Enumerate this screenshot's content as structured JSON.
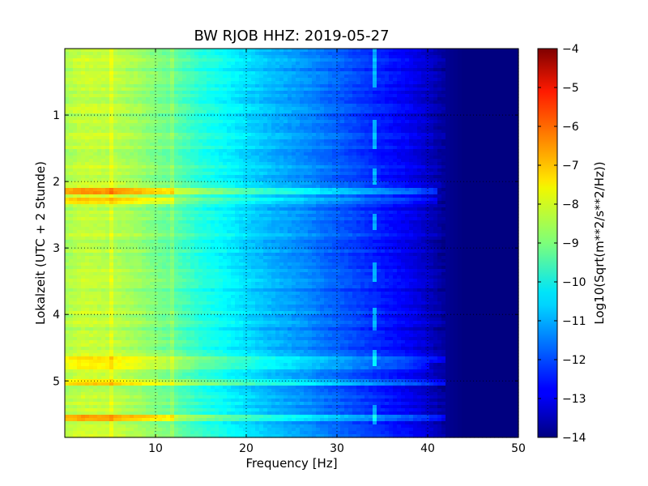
{
  "chart_data": {
    "type": "heatmap",
    "title": "BW RJOB HHZ: 2019-05-27",
    "xlabel": "Frequency [Hz]",
    "ylabel": "Lokalzeit (UTC + 2 Stunde)",
    "xlim": [
      0,
      50
    ],
    "ylim": [
      5.85,
      0
    ],
    "x_ticks": [
      10,
      20,
      30,
      40,
      50
    ],
    "x_tick_labels": [
      "10",
      "20",
      "30",
      "40",
      "50"
    ],
    "y_ticks": [
      1,
      2,
      3,
      4,
      5
    ],
    "y_tick_labels": [
      "1",
      "2",
      "3",
      "4",
      "5"
    ],
    "grid": true,
    "colorbar": {
      "label": "Log10(Sqrt(m**2/s**2/Hz))",
      "range": [
        -14,
        -4
      ],
      "ticks": [
        -4,
        -5,
        -6,
        -7,
        -8,
        -9,
        -10,
        -11,
        -12,
        -13,
        -14
      ],
      "tick_labels": [
        "−4",
        "−5",
        "−6",
        "−7",
        "−8",
        "−9",
        "−10",
        "−11",
        "−12",
        "−13",
        "−14"
      ],
      "colormap": "jet"
    },
    "frequency_profile_log10": {
      "frequency_hz": [
        0,
        2,
        5,
        8,
        10,
        12,
        15,
        18,
        20,
        23,
        26,
        29,
        32,
        35,
        38,
        40,
        42,
        44,
        50
      ],
      "value": [
        -8.6,
        -8.3,
        -8.4,
        -8.7,
        -9.0,
        -9.3,
        -9.9,
        -10.3,
        -10.6,
        -11.0,
        -11.3,
        -11.7,
        -12.1,
        -12.5,
        -12.9,
        -13.3,
        -13.8,
        -14.0,
        -14.0
      ]
    },
    "features": {
      "horizontal_bands": [
        {
          "time_h": 2.15,
          "strength": 1.2,
          "freq_max_hz": 41
        },
        {
          "time_h": 2.28,
          "strength": 0.6,
          "freq_max_hz": 41
        },
        {
          "time_h": 4.67,
          "strength": 0.9,
          "freq_max_hz": 42
        },
        {
          "time_h": 4.77,
          "strength": 0.6,
          "freq_max_hz": 40
        },
        {
          "time_h": 5.02,
          "strength": 0.9,
          "freq_max_hz": 42
        },
        {
          "time_h": 5.57,
          "strength": 1.1,
          "freq_max_hz": 42
        }
      ],
      "tonal_line_hz": 34.3,
      "tonal_line_segments_h": [
        [
          0.0,
          0.6
        ],
        [
          1.05,
          1.5
        ],
        [
          1.78,
          2.05
        ],
        [
          2.5,
          2.72
        ],
        [
          3.2,
          3.5
        ],
        [
          3.9,
          4.25
        ],
        [
          4.55,
          4.8
        ],
        [
          5.35,
          5.65
        ]
      ],
      "vertical_line_hz": [
        5.0,
        12.0
      ],
      "low_freq_enhanced_h": [
        2.15,
        2.28,
        5.57
      ]
    }
  }
}
